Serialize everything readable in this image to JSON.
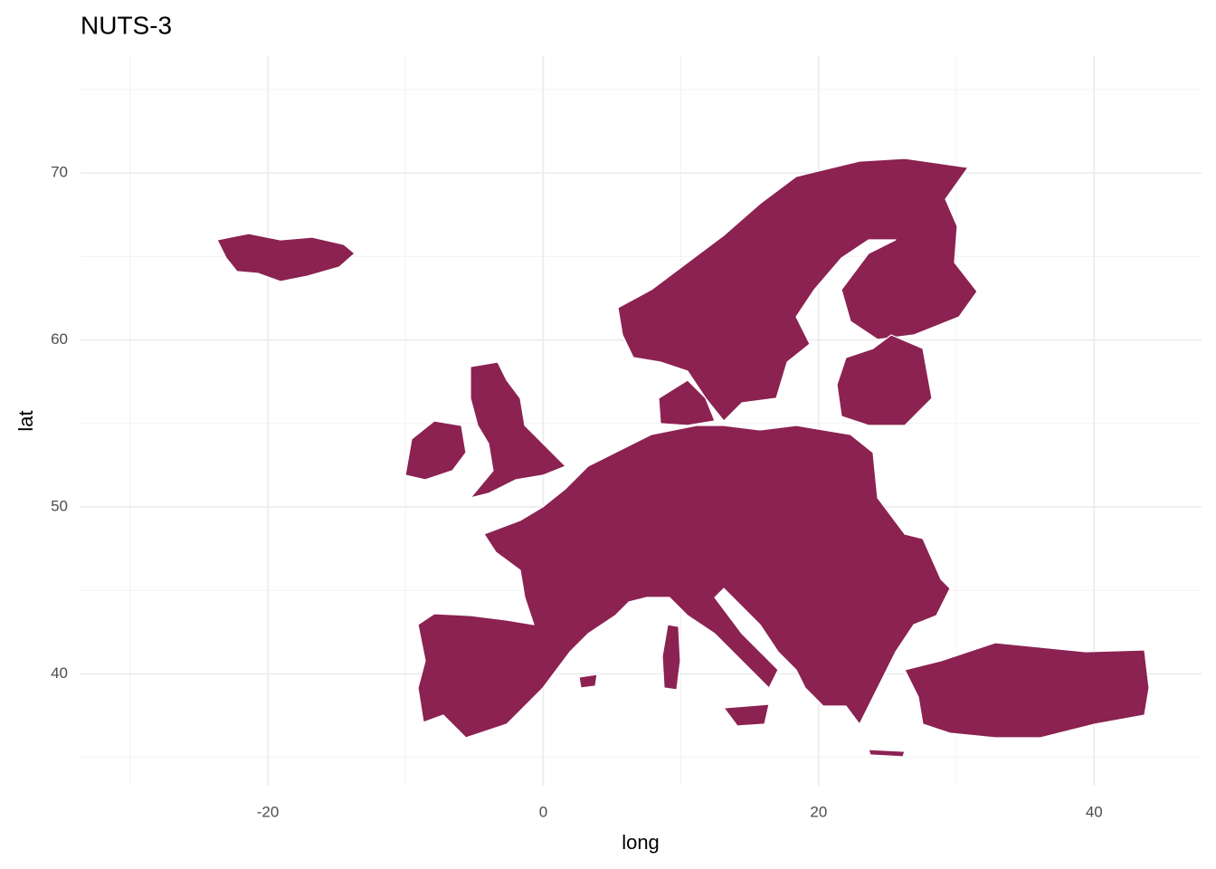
{
  "chart_data": {
    "type": "map",
    "title": "NUTS-3",
    "x_label": "long",
    "y_label": "lat",
    "xlim": [
      -33.6,
      47.8
    ],
    "ylim": [
      33.3,
      77.0
    ],
    "xticks": [
      -20,
      0,
      20,
      40
    ],
    "yticks": [
      40,
      50,
      60,
      70
    ],
    "xminor": [
      -30,
      -10,
      10,
      30
    ],
    "yminor": [
      35,
      45,
      55,
      65,
      75
    ],
    "grid": true,
    "color": "#8b2252"
  }
}
